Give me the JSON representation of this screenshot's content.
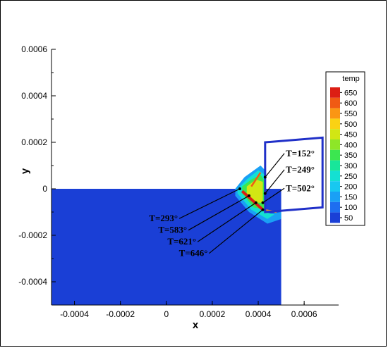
{
  "chart_data": {
    "type": "heatmap",
    "title": "",
    "xlabel": "x",
    "ylabel": "y",
    "xlim": [
      -0.0005,
      0.00075
    ],
    "ylim": [
      -0.0005,
      0.0006
    ],
    "x_ticks": [
      -0.0004,
      -0.0002,
      0,
      0.0002,
      0.0004,
      0.0006
    ],
    "x_tick_labels": [
      "-0.0004",
      "-0.0002",
      "0",
      "0.0002",
      "0.0004",
      "0.0006"
    ],
    "y_ticks": [
      -0.0004,
      -0.0002,
      0,
      0.0002,
      0.0004,
      0.0006
    ],
    "y_tick_labels": [
      "-0.0004",
      "-0.0002",
      "0",
      "0.0002",
      "0.0004",
      "0.0006"
    ],
    "colorbar": {
      "title": "temp",
      "levels": [
        50,
        100,
        150,
        200,
        250,
        300,
        350,
        400,
        450,
        500,
        550,
        600,
        650
      ],
      "labels": [
        "650",
        "600",
        "550",
        "500",
        "450",
        "400",
        "350",
        "300",
        "250",
        "200",
        "150",
        "100",
        "50"
      ],
      "colors": [
        "#1a3fd6",
        "#1e6ef0",
        "#1aa0f5",
        "#18c8f0",
        "#14e0d2",
        "#18e69a",
        "#3ce650",
        "#8ee628",
        "#d2e614",
        "#fad214",
        "#fa9614",
        "#f05a14",
        "#dc1e14"
      ]
    },
    "workpiece": {
      "x": [
        -0.0005,
        0.0005
      ],
      "y": [
        -0.0005,
        0
      ]
    },
    "tool": {
      "polygon": [
        [
          0.00043,
          0.0002
        ],
        [
          0.00068,
          0.00022
        ],
        [
          0.00068,
          -8e-05
        ],
        [
          0.00043,
          -0.0001
        ]
      ]
    },
    "annotations": [
      {
        "text": "T=152°",
        "value": 152,
        "point": [
          0.00043,
          5e-05
        ],
        "label_at": [
          0.00052,
          0.00014
        ]
      },
      {
        "text": "T=249°",
        "value": 249,
        "point": [
          0.00043,
          -2e-05
        ],
        "label_at": [
          0.00052,
          7e-05
        ]
      },
      {
        "text": "T=502°",
        "value": 502,
        "point": [
          0.00042,
          -6e-05
        ],
        "label_at": [
          0.00052,
          -1e-05
        ]
      },
      {
        "text": "T=293°",
        "value": 293,
        "point": [
          0.00032,
          0
        ],
        "label_at": [
          5e-05,
          -0.00014
        ]
      },
      {
        "text": "T=583°",
        "value": 583,
        "point": [
          0.00036,
          -3e-05
        ],
        "label_at": [
          9e-05,
          -0.00019
        ]
      },
      {
        "text": "T=621°",
        "value": 621,
        "point": [
          0.00039,
          -6e-05
        ],
        "label_at": [
          0.00013,
          -0.00024
        ]
      },
      {
        "text": "T=646°",
        "value": 646,
        "point": [
          0.00042,
          -9e-05
        ],
        "label_at": [
          0.00018,
          -0.00029
        ]
      }
    ]
  }
}
